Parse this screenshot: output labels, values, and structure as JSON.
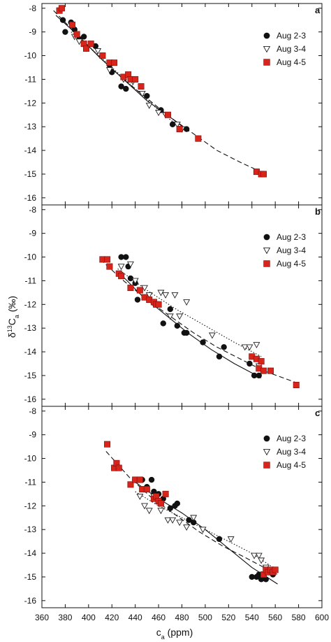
{
  "figure": {
    "xlabel_main": "c",
    "xlabel_sub": "a",
    "xlabel_unit": " (ppm)",
    "ylabel_delta": "δ",
    "ylabel_sup": "13",
    "ylabel_main": "C",
    "ylabel_sub": "a",
    "ylabel_unit": " (‰)",
    "colors": {
      "aug23": "#111111",
      "aug34": "#ffffff",
      "aug45": "#d9241b",
      "edge45": "#7a0f0a"
    }
  },
  "chart_data": [
    {
      "type": "scatter",
      "panel": "a",
      "xlim": [
        360,
        600
      ],
      "ylim": [
        -16.3,
        -7.8
      ],
      "xticks": [
        360,
        380,
        400,
        420,
        440,
        460,
        480,
        500,
        520,
        540,
        560,
        580,
        600
      ],
      "yticks": [
        -8,
        -9,
        -10,
        -11,
        -12,
        -13,
        -14,
        -15,
        -16
      ],
      "legend_position": "top-right",
      "series": [
        {
          "name": "Aug 2-3",
          "marker": "circle",
          "fit": "solid",
          "x": [
            378,
            380,
            385,
            388,
            392,
            396,
            406,
            418,
            420,
            422,
            428,
            432,
            450,
            462,
            472,
            484
          ],
          "y": [
            -8.5,
            -9.0,
            -8.6,
            -8.9,
            -9.3,
            -9.2,
            -9.6,
            -10.4,
            -10.7,
            -10.3,
            -11.3,
            -11.4,
            -11.7,
            -12.3,
            -12.9,
            -13.1
          ],
          "fit_x": [
            372,
            390,
            410,
            430,
            450,
            470,
            486
          ],
          "fit_y": [
            -8.3,
            -9.1,
            -10.1,
            -11.0,
            -11.9,
            -12.6,
            -13.2
          ]
        },
        {
          "name": "Aug 3-4",
          "marker": "triangle",
          "fit": "dotted",
          "x": [
            388,
            392,
            398,
            408,
            418,
            430,
            438,
            446,
            452,
            460,
            466,
            476,
            480
          ],
          "y": [
            -9.2,
            -9.4,
            -9.7,
            -9.8,
            -10.6,
            -11.0,
            -11.1,
            -11.6,
            -12.1,
            -12.4,
            -12.5,
            -12.9,
            -13.1
          ],
          "fit_x": [
            385,
            400,
            420,
            440,
            460,
            480
          ],
          "fit_y": [
            -9.0,
            -9.6,
            -10.5,
            -11.4,
            -12.3,
            -13.1
          ]
        },
        {
          "name": "Aug 4-5",
          "marker": "square",
          "fit": "dashed",
          "x": [
            375,
            377,
            386,
            390,
            396,
            398,
            402,
            412,
            418,
            422,
            430,
            434,
            436,
            440,
            445,
            468,
            478,
            494,
            544,
            548,
            550
          ],
          "y": [
            -8.1,
            -8.0,
            -8.7,
            -9.1,
            -9.5,
            -9.7,
            -9.5,
            -10.0,
            -10.3,
            -10.3,
            -10.9,
            -10.8,
            -11.0,
            -11.0,
            -11.3,
            -12.5,
            -13.1,
            -13.5,
            -14.9,
            -15.0,
            -15.0
          ],
          "fit_x": [
            370,
            390,
            410,
            430,
            450,
            470,
            490,
            510,
            530,
            552
          ],
          "fit_y": [
            -8.1,
            -9.1,
            -10.1,
            -11.0,
            -11.8,
            -12.6,
            -13.3,
            -14.0,
            -14.5,
            -15.0
          ]
        }
      ]
    },
    {
      "type": "scatter",
      "panel": "b",
      "xlim": [
        360,
        600
      ],
      "ylim": [
        -16.3,
        -7.8
      ],
      "xticks": [
        360,
        380,
        400,
        420,
        440,
        460,
        480,
        500,
        520,
        540,
        560,
        580,
        600
      ],
      "yticks": [
        -8,
        -9,
        -10,
        -11,
        -12,
        -13,
        -14,
        -15,
        -16
      ],
      "legend_position": "top-right",
      "series": [
        {
          "name": "Aug 2-3",
          "marker": "circle",
          "fit": "solid",
          "x": [
            428,
            432,
            434,
            436,
            440,
            442,
            456,
            460,
            464,
            470,
            476,
            482,
            484,
            498,
            512,
            516,
            538,
            542,
            546
          ],
          "y": [
            -10.0,
            -10.0,
            -10.4,
            -10.9,
            -11.1,
            -11.8,
            -11.9,
            -12.0,
            -12.8,
            -12.2,
            -12.9,
            -13.2,
            -13.2,
            -13.6,
            -14.2,
            -13.8,
            -14.5,
            -15.0,
            -15.0
          ],
          "fit_x": [
            425,
            445,
            465,
            485,
            505,
            525,
            548
          ],
          "fit_y": [
            -10.6,
            -11.6,
            -12.4,
            -13.2,
            -13.9,
            -14.5,
            -15.1
          ]
        },
        {
          "name": "Aug 3-4",
          "marker": "triangle",
          "fit": "dotted",
          "x": [
            428,
            436,
            440,
            448,
            452,
            456,
            462,
            466,
            470,
            474,
            478,
            484,
            506,
            534,
            538,
            544,
            546
          ],
          "y": [
            -10.4,
            -10.3,
            -11.0,
            -11.3,
            -11.6,
            -12.0,
            -11.5,
            -11.6,
            -12.5,
            -11.6,
            -12.5,
            -11.9,
            -13.3,
            -13.8,
            -13.8,
            -13.7,
            -14.6
          ],
          "fit_x": [
            425,
            450,
            475,
            500,
            525,
            548
          ],
          "fit_y": [
            -10.5,
            -11.4,
            -12.2,
            -12.9,
            -13.6,
            -14.2
          ]
        },
        {
          "name": "Aug 4-5",
          "marker": "square",
          "fit": "dashed",
          "x": [
            412,
            416,
            418,
            426,
            428,
            436,
            444,
            448,
            452,
            456,
            458,
            460,
            540,
            544,
            546,
            548,
            550,
            556,
            578
          ],
          "y": [
            -10.1,
            -10.1,
            -10.4,
            -10.7,
            -10.8,
            -11.3,
            -11.4,
            -11.7,
            -11.8,
            -11.9,
            -12.0,
            -12.0,
            -14.2,
            -14.3,
            -14.7,
            -14.4,
            -14.8,
            -14.8,
            -15.4
          ],
          "fit_x": [
            410,
            430,
            450,
            470,
            490,
            510,
            530,
            550,
            578
          ],
          "fit_y": [
            -10.1,
            -11.0,
            -11.8,
            -12.5,
            -13.2,
            -13.8,
            -14.3,
            -14.8,
            -15.3
          ]
        }
      ]
    },
    {
      "type": "scatter",
      "panel": "c",
      "xlim": [
        360,
        600
      ],
      "ylim": [
        -16.3,
        -7.8
      ],
      "xticks": [
        360,
        380,
        400,
        420,
        440,
        460,
        480,
        500,
        520,
        540,
        560,
        580,
        600
      ],
      "yticks": [
        -8,
        -9,
        -10,
        -11,
        -12,
        -13,
        -14,
        -15,
        -16
      ],
      "legend_position": "top-right",
      "series": [
        {
          "name": "Aug 2-3",
          "marker": "circle",
          "fit": "solid",
          "x": [
            446,
            450,
            454,
            456,
            460,
            464,
            470,
            474,
            476,
            486,
            490,
            512,
            540,
            544,
            546,
            548,
            552,
            556,
            558
          ],
          "y": [
            -10.9,
            -11.2,
            -10.9,
            -11.4,
            -11.5,
            -11.7,
            -12.1,
            -12.0,
            -11.9,
            -12.6,
            -12.7,
            -13.4,
            -15.0,
            -15.0,
            -14.9,
            -15.1,
            -15.1,
            -14.8,
            -14.9
          ],
          "fit_x": [
            440,
            460,
            480,
            500,
            520,
            540,
            562
          ],
          "fit_y": [
            -11.0,
            -11.7,
            -12.3,
            -13.0,
            -13.8,
            -14.6,
            -15.3
          ]
        },
        {
          "name": "Aug 3-4",
          "marker": "triangle",
          "fit": "dotted",
          "x": [
            444,
            448,
            452,
            456,
            462,
            468,
            472,
            478,
            484,
            490,
            498,
            522,
            542,
            546,
            548,
            552
          ],
          "y": [
            -11.6,
            -12.0,
            -12.2,
            -11.6,
            -12.2,
            -12.6,
            -12.6,
            -12.7,
            -12.9,
            -12.5,
            -13.0,
            -13.4,
            -14.1,
            -14.1,
            -14.3,
            -14.6
          ],
          "fit_x": [
            440,
            460,
            480,
            500,
            520,
            540,
            558
          ],
          "fit_y": [
            -11.4,
            -12.0,
            -12.5,
            -13.0,
            -13.5,
            -14.0,
            -14.6
          ]
        },
        {
          "name": "Aug 4-5",
          "marker": "square",
          "fit": "dashed",
          "x": [
            416,
            422,
            424,
            426,
            436,
            440,
            444,
            446,
            450,
            456,
            458,
            460,
            462,
            466,
            550,
            552,
            554,
            556,
            558,
            560
          ],
          "y": [
            -9.4,
            -10.4,
            -10.2,
            -10.4,
            -11.1,
            -10.9,
            -10.9,
            -11.3,
            -11.3,
            -11.7,
            -11.6,
            -11.8,
            -11.9,
            -11.5,
            -14.9,
            -14.7,
            -14.8,
            -14.7,
            -14.8,
            -14.7
          ],
          "fit_x": [
            415,
            435,
            455,
            475,
            495,
            515,
            535,
            562
          ],
          "fit_y": [
            -9.7,
            -10.8,
            -11.7,
            -12.4,
            -13.1,
            -13.7,
            -14.2,
            -14.9
          ]
        }
      ]
    }
  ]
}
